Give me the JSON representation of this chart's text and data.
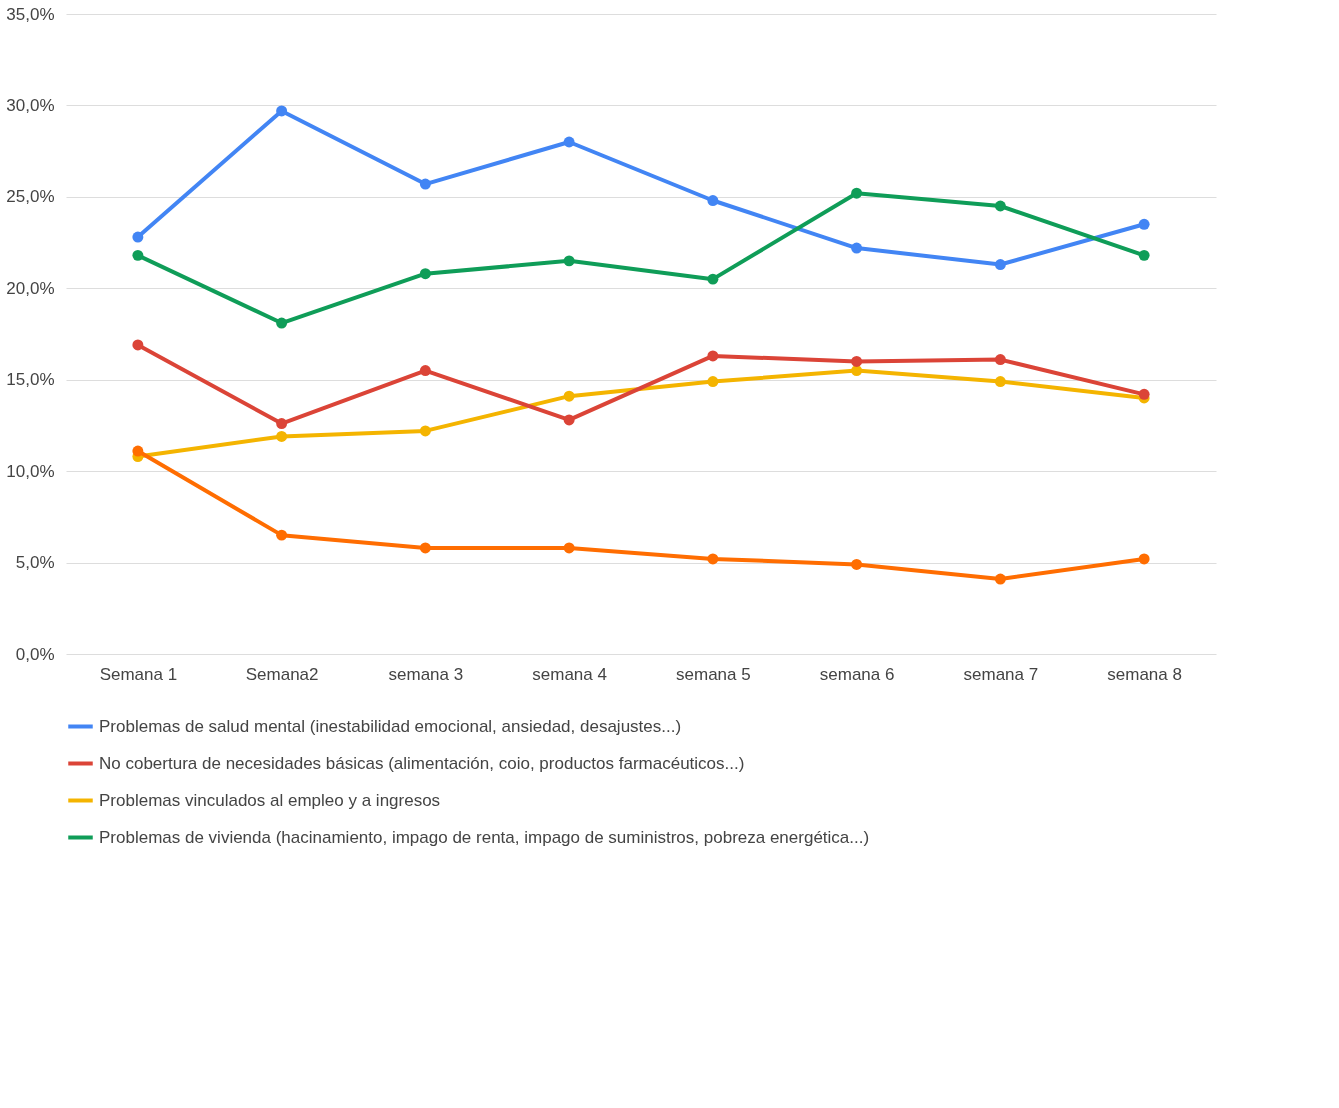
{
  "chart_data": {
    "type": "line",
    "categories": [
      "Semana 1",
      "Semana2",
      "semana 3",
      "semana 4",
      "semana 5",
      "semana 6",
      "semana 7",
      "semana 8"
    ],
    "series": [
      {
        "name": "Problemas de salud mental (inestabilidad emocional, ansiedad, desajustes...)",
        "color": "#4285f4",
        "values": [
          22.8,
          29.7,
          25.7,
          28.0,
          24.8,
          22.2,
          21.3,
          23.5
        ]
      },
      {
        "name": "No cobertura de necesidades básicas (alimentación, coio, productos farmacéuticos...)",
        "color": "#db4437",
        "values": [
          16.9,
          12.6,
          15.5,
          12.8,
          16.3,
          16.0,
          16.1,
          14.2
        ]
      },
      {
        "name": "Problemas vinculados al empleo y a ingresos",
        "color": "#f4b400",
        "values": [
          10.8,
          11.9,
          12.2,
          14.1,
          14.9,
          15.5,
          14.9,
          14.0
        ]
      },
      {
        "name": "Problemas de vivienda (hacinamiento, impago de renta, impago de suministros, pobreza energética...)",
        "color": "#0f9d58",
        "values": [
          21.8,
          18.1,
          20.8,
          21.5,
          20.5,
          25.2,
          24.5,
          21.8
        ]
      },
      {
        "color": "#ff6d01",
        "values": [
          11.1,
          6.5,
          5.8,
          5.8,
          5.2,
          4.9,
          4.1,
          5.2
        ]
      }
    ],
    "ylim": [
      0,
      35
    ],
    "yticks": [
      {
        "value": 0,
        "label": "0,0%"
      },
      {
        "value": 5,
        "label": "5,0%"
      },
      {
        "value": 10,
        "label": "10,0%"
      },
      {
        "value": 15,
        "label": "15,0%"
      },
      {
        "value": 20,
        "label": "20,0%"
      },
      {
        "value": 25,
        "label": "25,0%"
      },
      {
        "value": 30,
        "label": "30,0%"
      },
      {
        "value": 35,
        "label": "35,0%"
      }
    ],
    "grid": "y",
    "legend": "bottom",
    "marker": "circle",
    "line_style": "solid"
  }
}
